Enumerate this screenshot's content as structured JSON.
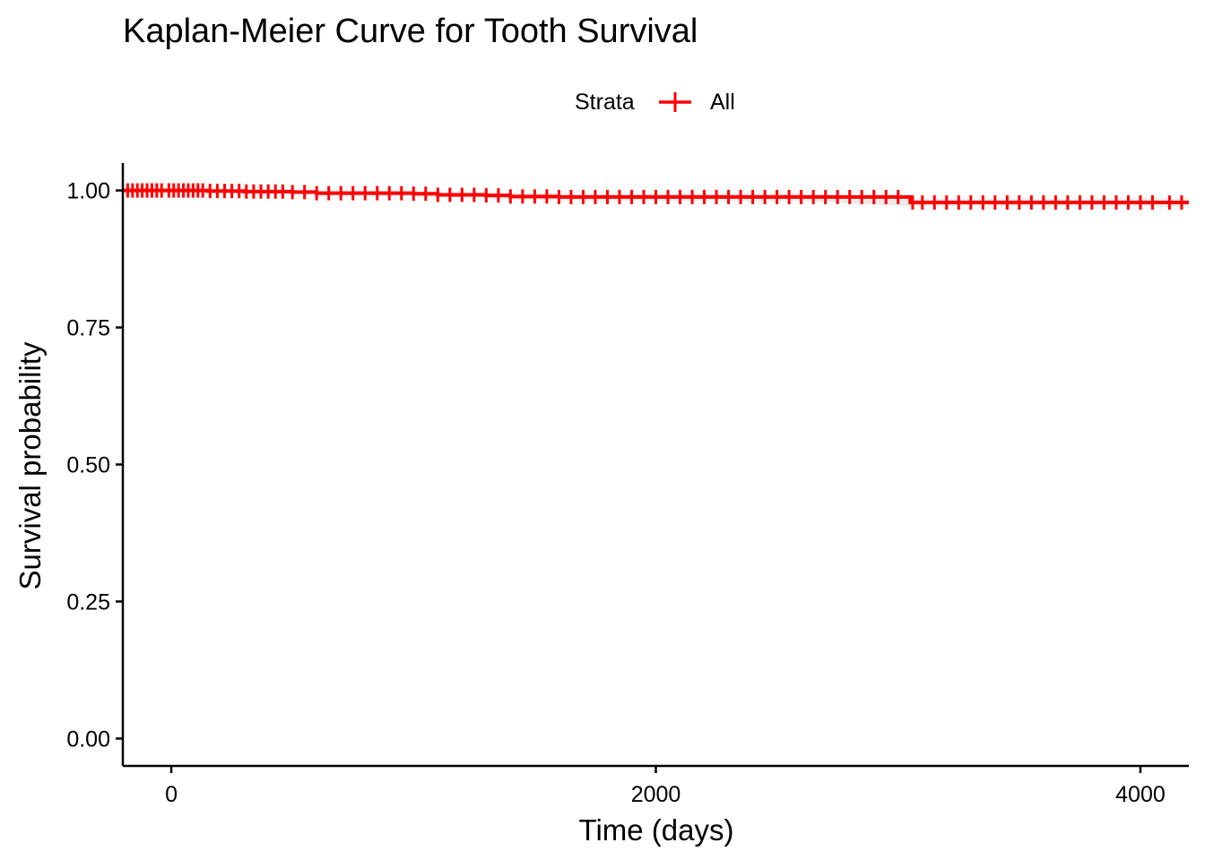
{
  "chart_data": {
    "type": "line",
    "title": "Kaplan-Meier Curve for Tooth Survival",
    "xlabel": "Time (days)",
    "ylabel": "Survival probability",
    "xlim": [
      -200,
      4200
    ],
    "ylim": [
      -0.05,
      1.05
    ],
    "x_ticks": [
      0,
      2000,
      4000
    ],
    "x_tick_labels": [
      "0",
      "2000",
      "4000"
    ],
    "y_ticks": [
      0,
      0.25,
      0.5,
      0.75,
      1.0
    ],
    "y_tick_labels": [
      "0.00",
      "0.25",
      "0.50",
      "0.75",
      "1.00"
    ],
    "legend": {
      "title": "Strata",
      "position": "top",
      "entries": [
        "All"
      ]
    },
    "grid": false,
    "color": "#FF0000",
    "confidence_band_color": "#E6E6E6",
    "series": [
      {
        "name": "All",
        "x": [
          -200,
          0,
          150,
          300,
          500,
          600,
          800,
          1000,
          1100,
          1300,
          1400,
          1600,
          1800,
          2000,
          2600,
          3050,
          3500,
          4000,
          4200
        ],
        "values": [
          1.0,
          1.0,
          0.999,
          0.998,
          0.997,
          0.995,
          0.995,
          0.994,
          0.992,
          0.991,
          0.989,
          0.988,
          0.988,
          0.988,
          0.988,
          0.978,
          0.978,
          0.978,
          0.978
        ]
      }
    ],
    "censor_times": [
      -180,
      -160,
      -140,
      -120,
      -100,
      -80,
      -60,
      -40,
      -10,
      10,
      30,
      50,
      70,
      90,
      110,
      130,
      160,
      190,
      220,
      250,
      280,
      310,
      340,
      370,
      400,
      430,
      460,
      500,
      550,
      600,
      650,
      700,
      750,
      800,
      850,
      900,
      950,
      1000,
      1050,
      1100,
      1150,
      1200,
      1250,
      1300,
      1350,
      1400,
      1450,
      1500,
      1550,
      1600,
      1650,
      1700,
      1750,
      1800,
      1850,
      1900,
      1950,
      2000,
      2050,
      2100,
      2150,
      2200,
      2250,
      2300,
      2350,
      2400,
      2450,
      2500,
      2550,
      2600,
      2650,
      2700,
      2750,
      2800,
      2850,
      2900,
      2950,
      3000,
      3060,
      3100,
      3150,
      3200,
      3250,
      3300,
      3350,
      3400,
      3450,
      3500,
      3550,
      3600,
      3650,
      3700,
      3750,
      3800,
      3850,
      3900,
      3950,
      4000,
      4050,
      4120,
      4170
    ]
  }
}
